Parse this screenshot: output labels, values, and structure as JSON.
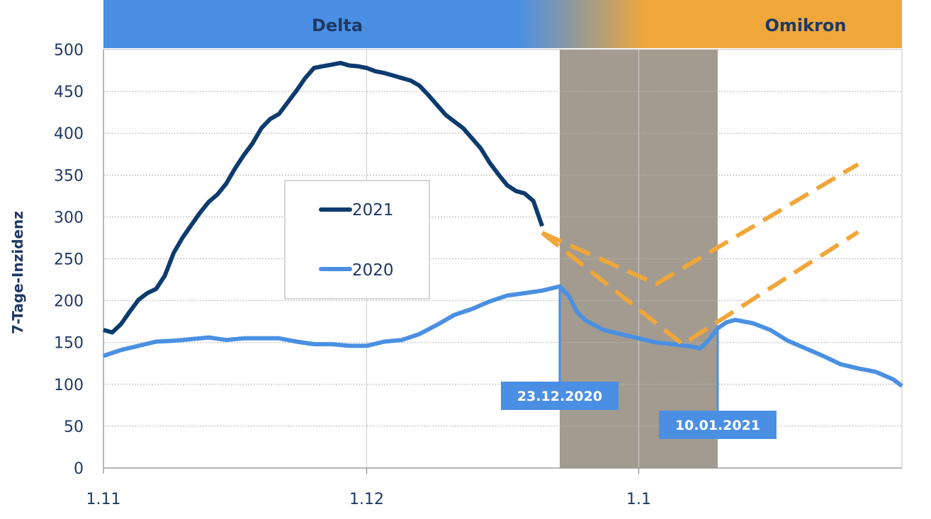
{
  "chart_data": {
    "type": "line",
    "ylabel": "7-Tage-Inzidenz",
    "xlabel": "",
    "ylim": [
      0,
      500
    ],
    "yticks": [
      0,
      50,
      100,
      150,
      200,
      250,
      300,
      350,
      400,
      450,
      500
    ],
    "xlim": [
      "2021-11-01",
      "2022-01-31"
    ],
    "xticks": [
      {
        "date": "2021-11-01",
        "label": "1.11"
      },
      {
        "date": "2021-12-01",
        "label": "1.12"
      },
      {
        "date": "2022-01-01",
        "label": "1.1"
      }
    ],
    "grid": true,
    "legend_position": "center-left",
    "colors": {
      "series_2021": "#0d3b6e",
      "series_2020": "#4a90e2",
      "projection": "#f0a73a",
      "delta_band": "#4a8fe3",
      "omikron_band": "#f0a73a",
      "shaded_period": "#a39b8f",
      "callout_box": "#4a8fe3"
    },
    "phases": [
      {
        "label": "Delta"
      },
      {
        "label": "Omikron"
      }
    ],
    "shaded_period": {
      "start": "2021-12-23",
      "end": "2022-01-10"
    },
    "series": [
      {
        "name": "2021",
        "x": [
          "2021-11-01",
          "2021-11-02",
          "2021-11-03",
          "2021-11-04",
          "2021-11-05",
          "2021-11-06",
          "2021-11-07",
          "2021-11-08",
          "2021-11-09",
          "2021-11-10",
          "2021-11-11",
          "2021-11-12",
          "2021-11-13",
          "2021-11-14",
          "2021-11-15",
          "2021-11-16",
          "2021-11-17",
          "2021-11-18",
          "2021-11-19",
          "2021-11-20",
          "2021-11-21",
          "2021-11-22",
          "2021-11-23",
          "2021-11-24",
          "2021-11-25",
          "2021-11-26",
          "2021-11-27",
          "2021-11-28",
          "2021-11-29",
          "2021-11-30",
          "2021-12-01",
          "2021-12-02",
          "2021-12-03",
          "2021-12-04",
          "2021-12-05",
          "2021-12-06",
          "2021-12-07",
          "2021-12-08",
          "2021-12-09",
          "2021-12-10",
          "2021-12-11",
          "2021-12-12",
          "2021-12-13",
          "2021-12-14",
          "2021-12-15",
          "2021-12-16",
          "2021-12-17",
          "2021-12-18",
          "2021-12-19",
          "2021-12-20",
          "2021-12-21"
        ],
        "values": [
          165,
          162,
          172,
          187,
          201,
          209,
          214,
          230,
          257,
          275,
          290,
          305,
          318,
          327,
          340,
          358,
          374,
          388,
          406,
          417,
          423,
          437,
          451,
          466,
          478,
          480,
          482,
          484,
          481,
          480,
          478,
          474,
          472,
          469,
          466,
          463,
          457,
          446,
          434,
          422,
          414,
          406,
          394,
          382,
          365,
          351,
          338,
          331,
          328,
          319,
          289
        ]
      },
      {
        "name": "2020",
        "x": [
          "2021-11-01",
          "2021-11-03",
          "2021-11-05",
          "2021-11-07",
          "2021-11-09",
          "2021-11-11",
          "2021-11-13",
          "2021-11-15",
          "2021-11-17",
          "2021-11-19",
          "2021-11-21",
          "2021-11-23",
          "2021-11-25",
          "2021-11-27",
          "2021-11-29",
          "2021-12-01",
          "2021-12-03",
          "2021-12-05",
          "2021-12-07",
          "2021-12-09",
          "2021-12-11",
          "2021-12-13",
          "2021-12-15",
          "2021-12-17",
          "2021-12-19",
          "2021-12-21",
          "2021-12-23",
          "2021-12-24",
          "2021-12-25",
          "2021-12-26",
          "2021-12-28",
          "2021-12-30",
          "2022-01-01",
          "2022-01-03",
          "2022-01-05",
          "2022-01-07",
          "2022-01-08",
          "2022-01-09",
          "2022-01-10",
          "2022-01-11",
          "2022-01-12",
          "2022-01-14",
          "2022-01-16",
          "2022-01-18",
          "2022-01-20",
          "2022-01-22",
          "2022-01-24",
          "2022-01-26",
          "2022-01-28",
          "2022-01-30",
          "2022-01-31"
        ],
        "values": [
          134,
          141,
          146,
          151,
          152,
          154,
          156,
          153,
          155,
          155,
          155,
          151,
          148,
          148,
          146,
          146,
          151,
          153,
          160,
          171,
          183,
          190,
          199,
          206,
          209,
          212,
          217,
          206,
          186,
          176,
          165,
          160,
          155,
          150,
          148,
          145,
          143,
          153,
          167,
          174,
          177,
          173,
          165,
          152,
          143,
          134,
          124,
          119,
          115,
          106,
          98
        ]
      },
      {
        "name": "",
        "dashed": true,
        "x": [
          "2021-12-21",
          "2022-01-03",
          "2022-01-26"
        ],
        "values": [
          281,
          220,
          363
        ]
      },
      {
        "name": "",
        "dashed": true,
        "x": [
          "2021-12-21",
          "2022-01-06",
          "2022-01-26"
        ],
        "values": [
          281,
          148,
          282
        ]
      }
    ],
    "annotations": [
      {
        "label": "23.12.2020",
        "date": "2021-12-23"
      },
      {
        "label": "10.01.2021",
        "date": "2022-01-10"
      }
    ]
  }
}
